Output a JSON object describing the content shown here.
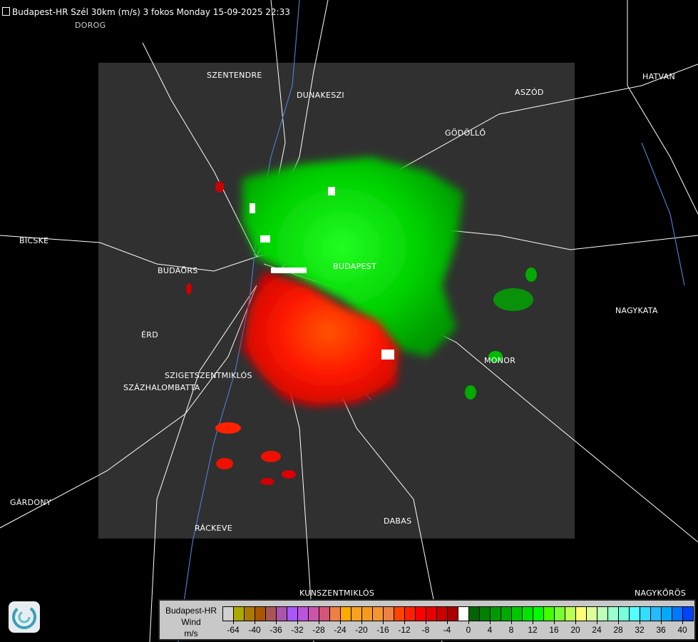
{
  "title": "Budapest-HR Szél 30km (m/s) 3 fokos Monday 15-09-2025 22:33",
  "title_icon": "document-icon",
  "cities": [
    "DOROG",
    "SZENTENDRE",
    "DUNAKESZI",
    "ASZÓD",
    "HATVAN",
    "GÖDÖLLŐ",
    "BICSKE",
    "BUDAÖRS",
    "BUDAPEST",
    "NAGYKATA",
    "ÉRD",
    "MONOR",
    "SZIGETSZENTMIKLÓS",
    "SZÁZHALOMBATTA",
    "GÁRDONY",
    "RÁCKEVE",
    "DABAS",
    "KUNSZENTMIKLÓS",
    "NAGYKŐRÖS"
  ],
  "legend": {
    "station": "Budapest-HR",
    "quantity": "Wind",
    "unit": "m/s",
    "colors": [
      "#d0d0d0",
      "#aaaa00",
      "#aa7a00",
      "#aa5500",
      "#aa5555",
      "#aa55aa",
      "#aa55ff",
      "#bb55dd",
      "#cc55aa",
      "#d55577",
      "#ee8044",
      "#ffaa00",
      "#f8a020",
      "#f59a20",
      "#f59530",
      "#ee8044",
      "#ff4400",
      "#ff2200",
      "#ff0000",
      "#e60000",
      "#cc0000",
      "#aa0000",
      "#ffffff",
      "#006600",
      "#008000",
      "#009900",
      "#00aa00",
      "#00c800",
      "#00e600",
      "#00ff00",
      "#44ff00",
      "#77ff33",
      "#bbff55",
      "#ffff77",
      "#ddff99",
      "#bbffbb",
      "#99ffcc",
      "#77ffdd",
      "#55ffff",
      "#33ddff",
      "#22bbff",
      "#00aaff",
      "#0077ff",
      "#0044ff",
      "#0000ff"
    ],
    "ticks": [
      "-64",
      "-40",
      "-36",
      "-32",
      "-28",
      "-24",
      "-20",
      "-16",
      "-12",
      "-8",
      "-4",
      "0",
      "4",
      "8",
      "12",
      "16",
      "20",
      "24",
      "28",
      "32",
      "36",
      "40"
    ]
  },
  "colors": {
    "background": "#000000",
    "radar_area": "#303030",
    "approaching": "#00ff00",
    "receding": "#ff0000"
  }
}
